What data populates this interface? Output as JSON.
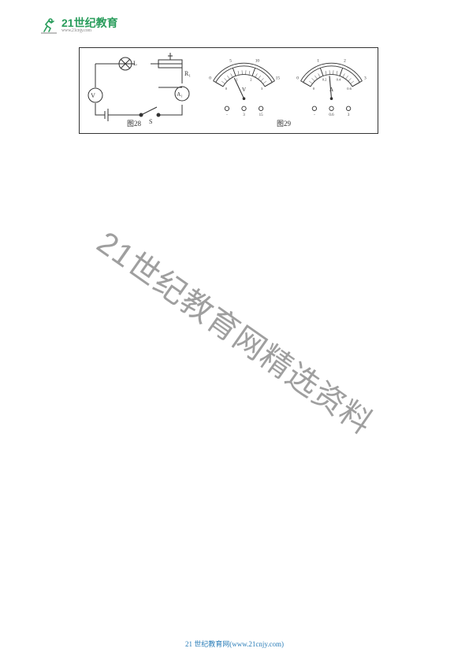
{
  "logo": {
    "brand": "21世纪教育",
    "tagline": "www.21cnjy.com"
  },
  "diagram": {
    "circuit_caption": "图28",
    "meters_caption": "图29",
    "circuit": {
      "bulb_label": "L",
      "resistor_label": "R₁",
      "ammeter_label": "A₁",
      "switch_label": "S",
      "voltmeter_unit": "V",
      "ammeter_unit": "A"
    },
    "voltmeter": {
      "unit": "V",
      "scale_top": [
        "0",
        "5",
        "10",
        "15"
      ],
      "scale_bot": [
        "0",
        "1",
        "2",
        "3"
      ],
      "terminals": [
        "-",
        "3",
        "15"
      ],
      "needle_deg": 35,
      "arc_color": "#333333",
      "tick_color": "#333333",
      "text_color": "#333333",
      "bg": "#ffffff"
    },
    "ammeter": {
      "unit": "A",
      "scale_top": [
        "0",
        "1",
        "2",
        "3"
      ],
      "scale_bot": [
        "0",
        "0.2",
        "0.4",
        "0.6"
      ],
      "terminals": [
        "-",
        "0.6",
        "3"
      ],
      "needle_deg": 55,
      "arc_color": "#333333",
      "tick_color": "#333333",
      "text_color": "#333333",
      "bg": "#ffffff"
    }
  },
  "watermark": "21世纪教育网精选资料",
  "footer": {
    "text": "21 世纪教育网(www.21cnjy.com)"
  },
  "style": {
    "logo_color": "#2a9d5c",
    "footer_color": "#2a7db8",
    "stroke": "#333333"
  }
}
